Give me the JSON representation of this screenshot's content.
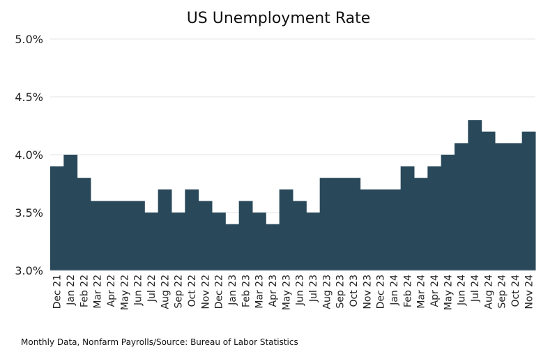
{
  "chart_data": {
    "type": "area",
    "step": true,
    "title": "US Unemployment Rate",
    "footnote": "Monthly Data, Nonfarm Payrolls/Source: Bureau of Labor Statistics",
    "xlabel": "",
    "ylabel": "",
    "ylim": [
      3.0,
      5.0
    ],
    "yticks": [
      "3.0%",
      "3.5%",
      "4.0%",
      "4.5%",
      "5.0%"
    ],
    "ytick_values": [
      3.0,
      3.5,
      4.0,
      4.5,
      5.0
    ],
    "grid": "horizontal",
    "color": "#29495a",
    "categories": [
      "Dec 21",
      "Jan 22",
      "Feb 22",
      "Mar 22",
      "Apr 22",
      "May 22",
      "Jun 22",
      "Jul 22",
      "Aug 22",
      "Sep 22",
      "Oct 22",
      "Nov 22",
      "Dec 22",
      "Jan 23",
      "Feb 23",
      "Mar 23",
      "Apr 23",
      "May 23",
      "Jun 23",
      "Jul 23",
      "Aug 23",
      "Sep 23",
      "Oct 23",
      "Nov 23",
      "Dec 23",
      "Jan 24",
      "Feb 24",
      "Mar 24",
      "Apr 24",
      "May 24",
      "Jun 24",
      "Jul 24",
      "Aug 24",
      "Sep 24",
      "Oct 24",
      "Nov 24"
    ],
    "values": [
      3.9,
      4.0,
      3.8,
      3.6,
      3.6,
      3.6,
      3.6,
      3.5,
      3.7,
      3.5,
      3.7,
      3.6,
      3.5,
      3.4,
      3.6,
      3.5,
      3.4,
      3.7,
      3.6,
      3.5,
      3.8,
      3.8,
      3.8,
      3.7,
      3.7,
      3.7,
      3.9,
      3.8,
      3.9,
      4.0,
      4.1,
      4.3,
      4.2,
      4.1,
      4.1,
      4.2
    ]
  }
}
